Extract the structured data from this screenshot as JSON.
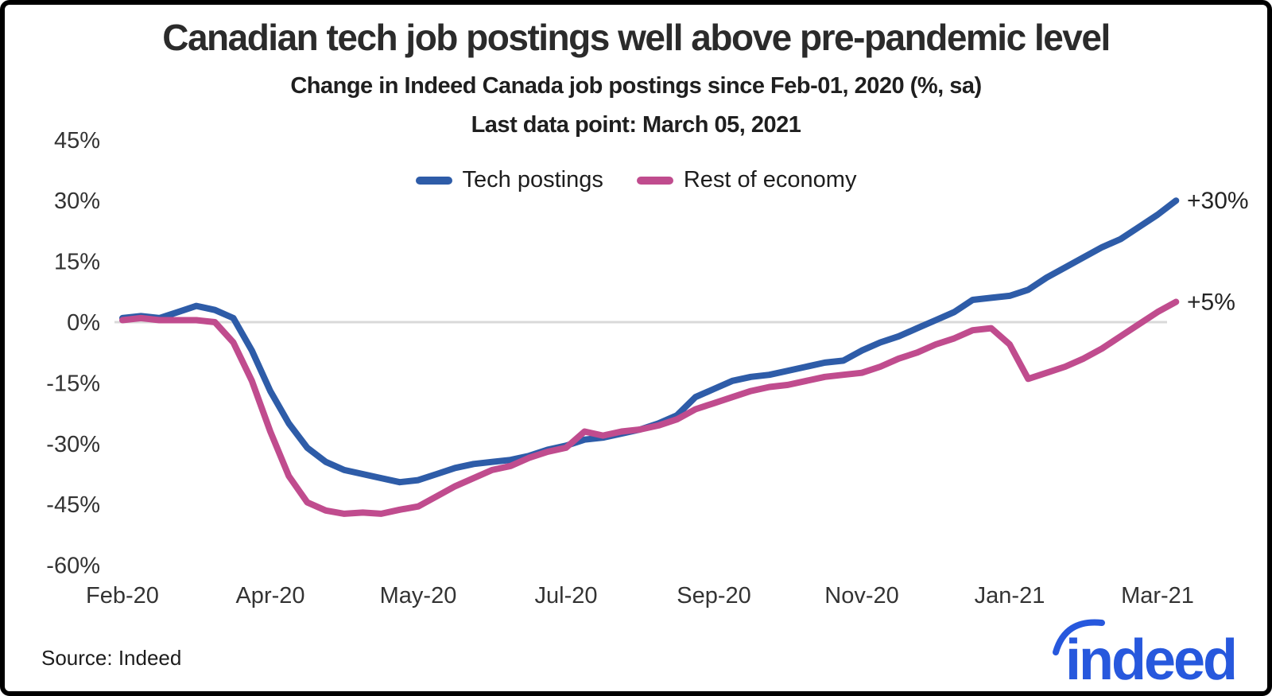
{
  "header": {
    "title": "Canadian tech job postings well above pre-pandemic level",
    "subtitle": "Change in Indeed Canada job postings since Feb-01, 2020 (%, sa)",
    "last_data_point": "Last data point: March 05, 2021"
  },
  "legend": {
    "items": [
      {
        "label": "Tech postings",
        "color": "#2e5ca8"
      },
      {
        "label": "Rest of economy",
        "color": "#c04c8e"
      }
    ]
  },
  "chart_data": {
    "type": "line",
    "title": "Canadian tech job postings well above pre-pandemic level",
    "subtitle": "Change in Indeed Canada job postings since Feb-01, 2020 (%, sa)",
    "note": "Last data point: March 05, 2021",
    "x_unit": "weeks since Feb-01-2020, weekly data points",
    "x_ticks": [
      {
        "label": "Feb-20",
        "week": 0
      },
      {
        "label": "Apr-20",
        "week": 8
      },
      {
        "label": "May-20",
        "week": 16
      },
      {
        "label": "Jul-20",
        "week": 24
      },
      {
        "label": "Sep-20",
        "week": 32
      },
      {
        "label": "Nov-20",
        "week": 40
      },
      {
        "label": "Jan-21",
        "week": 48
      },
      {
        "label": "Mar-21",
        "week": 56
      }
    ],
    "y_ticks": [
      45,
      30,
      15,
      0,
      -15,
      -30,
      -45,
      -60
    ],
    "y_tick_suffix": "%",
    "ylim": [
      -63,
      47
    ],
    "grid": "zero-line-only",
    "legend_position": "top-center",
    "series": [
      {
        "name": "Tech postings",
        "color": "#2e5ca8",
        "values": [
          1,
          1.5,
          1,
          2.5,
          4,
          3,
          1,
          -7,
          -17,
          -25,
          -31,
          -34.5,
          -36.5,
          -37.5,
          -38.5,
          -39.5,
          -39,
          -37.5,
          -36,
          -35,
          -34.5,
          -34,
          -33,
          -31.5,
          -30.5,
          -29,
          -28.5,
          -27.5,
          -26.5,
          -25,
          -23,
          -18.5,
          -16.5,
          -14.5,
          -13.5,
          -13,
          -12,
          -11,
          -10,
          -9.5,
          -7,
          -5,
          -3.5,
          -1.5,
          0.5,
          2.5,
          5.5,
          6,
          6.5,
          8,
          11,
          13.5,
          16,
          18.5,
          20.5,
          23.5,
          26.5,
          30
        ]
      },
      {
        "name": "Rest of economy",
        "color": "#c04c8e",
        "values": [
          0.5,
          1,
          0.5,
          0.5,
          0.5,
          0,
          -5,
          -14.5,
          -27,
          -38,
          -44.5,
          -46.5,
          -47.3,
          -47,
          -47.3,
          -46.3,
          -45.5,
          -43,
          -40.5,
          -38.5,
          -36.5,
          -35.5,
          -33.5,
          -32,
          -31,
          -27,
          -28,
          -27,
          -26.5,
          -25.5,
          -24,
          -21.5,
          -20,
          -18.5,
          -17,
          -16,
          -15.5,
          -14.5,
          -13.5,
          -13,
          -12.5,
          -11,
          -9,
          -7.5,
          -5.5,
          -4,
          -2,
          -1.5,
          -5.5,
          -14,
          -12.5,
          -11,
          -9,
          -6.5,
          -3.5,
          -0.5,
          2.5,
          5
        ]
      }
    ],
    "end_labels": [
      {
        "text": "+30%",
        "value": 30,
        "series": "Tech postings"
      },
      {
        "text": "+5%",
        "value": 5,
        "series": "Rest of economy"
      }
    ]
  },
  "footer": {
    "source": "Source: Indeed",
    "logo_text": "indeed"
  },
  "colors": {
    "tech_line": "#2e5ca8",
    "economy_line": "#c04c8e",
    "logo_blue": "#2758dd",
    "zero_line": "#d9d9d9",
    "title_text": "#2b2b2b"
  }
}
